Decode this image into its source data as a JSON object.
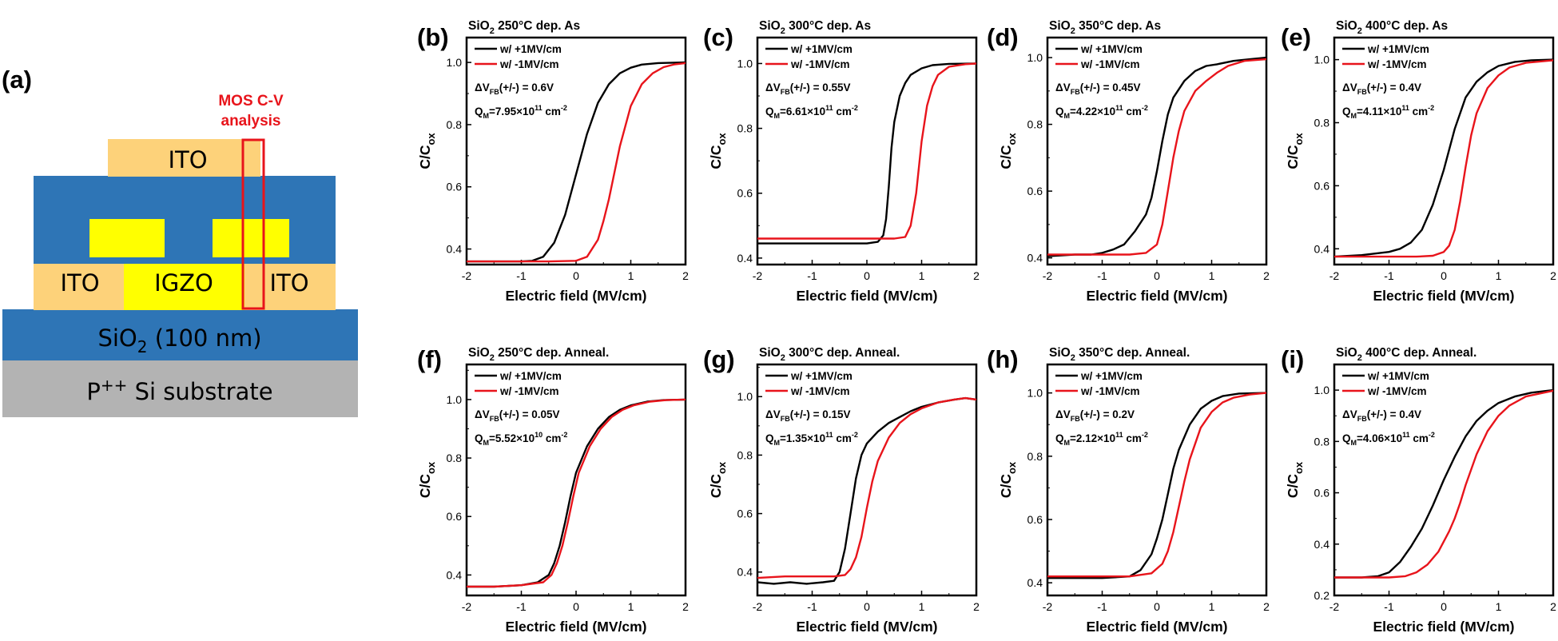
{
  "figure": {
    "panel_a": {
      "letter": "(a)",
      "analysis_label_line1": "MOS C-V",
      "analysis_label_line2": "analysis",
      "layers": {
        "ito_top": "ITO",
        "ito_left": "ITO",
        "igzo": "IGZO",
        "ito_right": "ITO",
        "sio2_main": "SiO",
        "sio2_sub": "2",
        "sio2_rest": " (100 nm)",
        "substrate_main": "P",
        "substrate_sup": "++",
        "substrate_rest": " Si substrate"
      },
      "colors": {
        "ito": "#fdd27a",
        "oxide": "#2e75b6",
        "igzo": "#ffff00",
        "substrate": "#b3b3b3",
        "highlight": "#e8141b"
      }
    },
    "series_colors": {
      "plus": "#000000",
      "minus": "#e8141b"
    }
  },
  "chart_data": [
    {
      "type": "line",
      "letter": "(b)",
      "title_main": "SiO",
      "title_sub": "2",
      "title_rest": " 250°C dep. As",
      "xlabel": "Electric field (MV/cm)",
      "ylabel_main": "C/C",
      "ylabel_sub": "ox",
      "xlim": [
        -2,
        2
      ],
      "ylim": [
        0.35,
        1.08
      ],
      "xticks": [
        -2,
        -1,
        0,
        1,
        2
      ],
      "yticks": [
        0.4,
        0.6,
        0.8,
        1.0
      ],
      "yticklabels": [
        "0.4",
        "0.6",
        "0.8",
        "1.0"
      ],
      "legend": [
        "w/ +1MV/cm",
        "w/ -1MV/cm"
      ],
      "annotation": {
        "dv_pre": "ΔV",
        "dv_sub": "FB",
        "dv_post": "(+/-) = 0.6V",
        "q_pre": "Q",
        "q_sub": "M",
        "q_mid": "=7.95×10",
        "q_exp": "11",
        "q_unit": " cm",
        "q_unit_exp": "-2"
      },
      "series": [
        {
          "name": "w/ +1MV/cm",
          "x": [
            -2.0,
            -1.5,
            -1.0,
            -0.8,
            -0.6,
            -0.4,
            -0.2,
            0.0,
            0.2,
            0.4,
            0.6,
            0.8,
            1.0,
            1.2,
            1.5,
            2.0
          ],
          "y": [
            0.36,
            0.36,
            0.36,
            0.362,
            0.375,
            0.42,
            0.51,
            0.64,
            0.77,
            0.87,
            0.93,
            0.965,
            0.983,
            0.993,
            0.998,
            1.0
          ]
        },
        {
          "name": "w/ -1MV/cm",
          "x": [
            -2.0,
            -1.5,
            -1.0,
            -0.5,
            0.0,
            0.2,
            0.4,
            0.5,
            0.6,
            0.8,
            1.0,
            1.2,
            1.4,
            1.6,
            1.8,
            2.0
          ],
          "y": [
            0.36,
            0.36,
            0.36,
            0.36,
            0.362,
            0.375,
            0.43,
            0.49,
            0.56,
            0.73,
            0.86,
            0.93,
            0.965,
            0.985,
            0.994,
            0.998
          ]
        }
      ]
    },
    {
      "type": "line",
      "letter": "(c)",
      "title_main": "SiO",
      "title_sub": "2",
      "title_rest": " 300°C dep. As",
      "xlabel": "Electric field (MV/cm)",
      "ylabel_main": "C/C",
      "ylabel_sub": "ox",
      "xlim": [
        -2,
        2
      ],
      "ylim": [
        0.38,
        1.08
      ],
      "xticks": [
        -2,
        -1,
        0,
        1,
        2
      ],
      "yticks": [
        0.4,
        0.6,
        0.8,
        1.0
      ],
      "yticklabels": [
        "0.4",
        "0.6",
        "0.8",
        "1.0"
      ],
      "legend": [
        "w/ +1MV/cm",
        "w/ -1MV/cm"
      ],
      "annotation": {
        "dv_pre": "ΔV",
        "dv_sub": "FB",
        "dv_post": "(+/-) = 0.55V",
        "q_pre": "Q",
        "q_sub": "M",
        "q_mid": "=6.61×10",
        "q_exp": "11",
        "q_unit": " cm",
        "q_unit_exp": "-2"
      },
      "series": [
        {
          "name": "w/ +1MV/cm",
          "x": [
            -2.0,
            -1.0,
            0.0,
            0.2,
            0.3,
            0.35,
            0.4,
            0.45,
            0.5,
            0.6,
            0.7,
            0.8,
            1.0,
            1.2,
            1.5,
            2.0
          ],
          "y": [
            0.445,
            0.445,
            0.445,
            0.45,
            0.47,
            0.52,
            0.62,
            0.74,
            0.82,
            0.9,
            0.94,
            0.965,
            0.985,
            0.995,
            0.999,
            1.0
          ]
        },
        {
          "name": "w/ -1MV/cm",
          "x": [
            -2.0,
            -1.0,
            0.0,
            0.5,
            0.7,
            0.8,
            0.9,
            0.95,
            1.0,
            1.1,
            1.2,
            1.3,
            1.5,
            1.8,
            2.0
          ],
          "y": [
            0.46,
            0.46,
            0.46,
            0.46,
            0.465,
            0.5,
            0.6,
            0.68,
            0.76,
            0.87,
            0.93,
            0.965,
            0.99,
            0.998,
            1.0
          ]
        }
      ]
    },
    {
      "type": "line",
      "letter": "(d)",
      "title_main": "SiO",
      "title_sub": "2",
      "title_rest": " 350°C dep. As",
      "xlabel": "Electric field (MV/cm)",
      "ylabel_main": "C/C",
      "ylabel_sub": "ox",
      "xlim": [
        -2,
        2
      ],
      "ylim": [
        0.38,
        1.06
      ],
      "xticks": [
        -2,
        -1,
        0,
        1,
        2
      ],
      "yticks": [
        0.4,
        0.6,
        0.8,
        1.0
      ],
      "yticklabels": [
        "0.4",
        "0.6",
        "0.8",
        "1.0"
      ],
      "legend": [
        "w/ +1MV/cm",
        "w/ -1MV/cm"
      ],
      "annotation": {
        "dv_pre": "ΔV",
        "dv_sub": "FB",
        "dv_post": "(+/-) = 0.45V",
        "q_pre": "Q",
        "q_sub": "M",
        "q_mid": "=4.22×10",
        "q_exp": "11",
        "q_unit": " cm",
        "q_unit_exp": "-2"
      },
      "series": [
        {
          "name": "w/ +1MV/cm",
          "x": [
            -2.0,
            -1.5,
            -1.2,
            -1.0,
            -0.8,
            -0.6,
            -0.4,
            -0.2,
            -0.1,
            0.0,
            0.1,
            0.2,
            0.3,
            0.5,
            0.7,
            0.9,
            1.1,
            1.4,
            1.7,
            2.0
          ],
          "y": [
            0.405,
            0.41,
            0.41,
            0.415,
            0.425,
            0.44,
            0.48,
            0.53,
            0.58,
            0.66,
            0.75,
            0.83,
            0.88,
            0.93,
            0.96,
            0.975,
            0.98,
            0.99,
            0.995,
            1.0
          ]
        },
        {
          "name": "w/ -1MV/cm",
          "x": [
            -2.0,
            -1.5,
            -1.0,
            -0.5,
            -0.2,
            0.0,
            0.1,
            0.2,
            0.3,
            0.4,
            0.5,
            0.7,
            0.9,
            1.1,
            1.3,
            1.6,
            2.0
          ],
          "y": [
            0.41,
            0.41,
            0.41,
            0.41,
            0.415,
            0.44,
            0.5,
            0.6,
            0.7,
            0.78,
            0.84,
            0.9,
            0.93,
            0.955,
            0.975,
            0.99,
            0.995
          ]
        }
      ]
    },
    {
      "type": "line",
      "letter": "(e)",
      "title_main": "SiO",
      "title_sub": "2",
      "title_rest": " 400°C dep. As",
      "xlabel": "Electric field (MV/cm)",
      "ylabel_main": "C/C",
      "ylabel_sub": "ox",
      "xlim": [
        -2,
        2
      ],
      "ylim": [
        0.35,
        1.07
      ],
      "xticks": [
        -2,
        -1,
        0,
        1,
        2
      ],
      "yticks": [
        0.4,
        0.6,
        0.8,
        1.0
      ],
      "yticklabels": [
        "0.4",
        "0.6",
        "0.8",
        "1.0"
      ],
      "legend": [
        "w/ +1MV/cm",
        "w/ -1MV/cm"
      ],
      "annotation": {
        "dv_pre": "ΔV",
        "dv_sub": "FB",
        "dv_post": "(+/-) = 0.4V",
        "q_pre": "Q",
        "q_sub": "M",
        "q_mid": "=4.11×10",
        "q_exp": "11",
        "q_unit": " cm",
        "q_unit_exp": "-2"
      },
      "series": [
        {
          "name": "w/ +1MV/cm",
          "x": [
            -2.0,
            -1.5,
            -1.0,
            -0.8,
            -0.6,
            -0.4,
            -0.2,
            0.0,
            0.2,
            0.4,
            0.6,
            0.8,
            1.0,
            1.3,
            1.6,
            2.0
          ],
          "y": [
            0.375,
            0.38,
            0.39,
            0.4,
            0.42,
            0.46,
            0.54,
            0.65,
            0.78,
            0.88,
            0.93,
            0.96,
            0.98,
            0.993,
            0.998,
            1.0
          ]
        },
        {
          "name": "w/ -1MV/cm",
          "x": [
            -2.0,
            -1.0,
            -0.5,
            -0.2,
            0.0,
            0.1,
            0.2,
            0.3,
            0.4,
            0.5,
            0.6,
            0.8,
            1.0,
            1.2,
            1.5,
            2.0
          ],
          "y": [
            0.375,
            0.375,
            0.375,
            0.378,
            0.39,
            0.41,
            0.46,
            0.55,
            0.66,
            0.76,
            0.83,
            0.91,
            0.95,
            0.975,
            0.99,
            0.998
          ]
        }
      ]
    },
    {
      "type": "line",
      "letter": "(f)",
      "title_main": "SiO",
      "title_sub": "2",
      "title_rest": " 250°C dep. Anneal.",
      "xlabel": "Electric field (MV/cm)",
      "ylabel_main": "C/C",
      "ylabel_sub": "ox",
      "xlim": [
        -2,
        2
      ],
      "ylim": [
        0.33,
        1.12
      ],
      "xticks": [
        -2,
        -1,
        0,
        1,
        2
      ],
      "yticks": [
        0.4,
        0.6,
        0.8,
        1.0
      ],
      "yticklabels": [
        "0.4",
        "0.6",
        "0.8",
        "1.0"
      ],
      "legend": [
        "w/ +1MV/cm",
        "w/ -1MV/cm"
      ],
      "annotation": {
        "dv_pre": "ΔV",
        "dv_sub": "FB",
        "dv_post": "(+/-) = 0.05V",
        "q_pre": "Q",
        "q_sub": "M",
        "q_mid": "=5.52×10",
        "q_exp": "10",
        "q_unit": " cm",
        "q_unit_exp": "-2"
      },
      "series": [
        {
          "name": "w/ +1MV/cm",
          "x": [
            -2.0,
            -1.5,
            -1.0,
            -0.7,
            -0.5,
            -0.4,
            -0.3,
            -0.2,
            -0.1,
            0.0,
            0.2,
            0.4,
            0.6,
            0.8,
            1.0,
            1.3,
            1.6,
            2.0
          ],
          "y": [
            0.36,
            0.36,
            0.365,
            0.375,
            0.4,
            0.44,
            0.5,
            0.58,
            0.67,
            0.75,
            0.84,
            0.9,
            0.94,
            0.965,
            0.98,
            0.993,
            0.998,
            1.0
          ]
        },
        {
          "name": "w/ -1MV/cm",
          "x": [
            -2.0,
            -1.5,
            -1.0,
            -0.6,
            -0.45,
            -0.35,
            -0.25,
            -0.15,
            -0.05,
            0.05,
            0.25,
            0.45,
            0.65,
            0.85,
            1.05,
            1.35,
            1.65,
            2.0
          ],
          "y": [
            0.36,
            0.36,
            0.365,
            0.375,
            0.4,
            0.44,
            0.5,
            0.58,
            0.67,
            0.75,
            0.84,
            0.9,
            0.94,
            0.965,
            0.98,
            0.993,
            0.998,
            1.0
          ]
        }
      ]
    },
    {
      "type": "line",
      "letter": "(g)",
      "title_main": "SiO",
      "title_sub": "2",
      "title_rest": " 300°C dep. Anneal.",
      "xlabel": "Electric field (MV/cm)",
      "ylabel_main": "C/C",
      "ylabel_sub": "ox",
      "xlim": [
        -2,
        2
      ],
      "ylim": [
        0.32,
        1.11
      ],
      "xticks": [
        -2,
        -1,
        0,
        1,
        2
      ],
      "yticks": [
        0.4,
        0.6,
        0.8,
        1.0
      ],
      "yticklabels": [
        "0.4",
        "0.6",
        "0.8",
        "1.0"
      ],
      "legend": [
        "w/ +1MV/cm",
        "w/ -1MV/cm"
      ],
      "annotation": {
        "dv_pre": "ΔV",
        "dv_sub": "FB",
        "dv_post": "(+/-) = 0.15V",
        "q_pre": "Q",
        "q_sub": "M",
        "q_mid": "=1.35×10",
        "q_exp": "11",
        "q_unit": " cm",
        "q_unit_exp": "-2"
      },
      "series": [
        {
          "name": "w/ +1MV/cm",
          "x": [
            -2.0,
            -1.7,
            -1.4,
            -1.1,
            -0.8,
            -0.6,
            -0.5,
            -0.4,
            -0.3,
            -0.2,
            -0.1,
            0.0,
            0.2,
            0.4,
            0.6,
            0.8,
            1.0,
            1.3,
            1.6,
            1.8,
            2.0
          ],
          "y": [
            0.365,
            0.36,
            0.365,
            0.36,
            0.365,
            0.37,
            0.4,
            0.48,
            0.6,
            0.72,
            0.8,
            0.84,
            0.88,
            0.91,
            0.93,
            0.95,
            0.965,
            0.98,
            0.99,
            0.995,
            0.99
          ]
        },
        {
          "name": "w/ -1MV/cm",
          "x": [
            -2.0,
            -1.5,
            -1.0,
            -0.6,
            -0.4,
            -0.3,
            -0.2,
            -0.1,
            0.0,
            0.1,
            0.2,
            0.4,
            0.6,
            0.8,
            1.0,
            1.3,
            1.6,
            1.8,
            2.0
          ],
          "y": [
            0.38,
            0.385,
            0.385,
            0.385,
            0.39,
            0.41,
            0.45,
            0.52,
            0.62,
            0.71,
            0.78,
            0.86,
            0.91,
            0.94,
            0.96,
            0.98,
            0.99,
            0.995,
            0.99
          ]
        }
      ]
    },
    {
      "type": "line",
      "letter": "(h)",
      "title_main": "SiO",
      "title_sub": "2",
      "title_rest": " 350°C dep. Anneal.",
      "xlabel": "Electric field (MV/cm)",
      "ylabel_main": "C/C",
      "ylabel_sub": "ox",
      "xlim": [
        -2,
        2
      ],
      "ylim": [
        0.36,
        1.09
      ],
      "xticks": [
        -2,
        -1,
        0,
        1,
        2
      ],
      "yticks": [
        0.4,
        0.6,
        0.8,
        1.0
      ],
      "yticklabels": [
        "0.4",
        "0.6",
        "0.8",
        "1.0"
      ],
      "legend": [
        "w/ +1MV/cm",
        "w/ -1MV/cm"
      ],
      "annotation": {
        "dv_pre": "ΔV",
        "dv_sub": "FB",
        "dv_post": "(+/-) = 0.2V",
        "q_pre": "Q",
        "q_sub": "M",
        "q_mid": "=2.12×10",
        "q_exp": "11",
        "q_unit": " cm",
        "q_unit_exp": "-2"
      },
      "series": [
        {
          "name": "w/ +1MV/cm",
          "x": [
            -2.0,
            -1.0,
            -0.5,
            -0.3,
            -0.1,
            0.0,
            0.1,
            0.2,
            0.3,
            0.4,
            0.6,
            0.8,
            1.0,
            1.2,
            1.5,
            2.0
          ],
          "y": [
            0.415,
            0.415,
            0.42,
            0.44,
            0.49,
            0.54,
            0.6,
            0.68,
            0.76,
            0.82,
            0.9,
            0.95,
            0.975,
            0.99,
            0.998,
            1.0
          ]
        },
        {
          "name": "w/ -1MV/cm",
          "x": [
            -2.0,
            -1.0,
            -0.5,
            -0.1,
            0.1,
            0.2,
            0.3,
            0.4,
            0.5,
            0.6,
            0.8,
            1.0,
            1.2,
            1.4,
            1.7,
            2.0
          ],
          "y": [
            0.42,
            0.42,
            0.42,
            0.43,
            0.46,
            0.5,
            0.56,
            0.64,
            0.72,
            0.79,
            0.89,
            0.94,
            0.97,
            0.985,
            0.995,
            1.0
          ]
        }
      ]
    },
    {
      "type": "line",
      "letter": "(i)",
      "title_main": "SiO",
      "title_sub": "2",
      "title_rest": " 400°C dep. Anneal.",
      "xlabel": "Electric field (MV/cm)",
      "ylabel_main": "C/C",
      "ylabel_sub": "ox",
      "xlim": [
        -2,
        2
      ],
      "ylim": [
        0.2,
        1.1
      ],
      "xticks": [
        -2,
        -1,
        0,
        1,
        2
      ],
      "yticks": [
        0.2,
        0.4,
        0.6,
        0.8,
        1.0
      ],
      "yticklabels": [
        "0.2",
        "0.4",
        "0.6",
        "0.8",
        "1.0"
      ],
      "legend": [
        "w/ +1MV/cm",
        "w/ -1MV/cm"
      ],
      "annotation": {
        "dv_pre": "ΔV",
        "dv_sub": "FB",
        "dv_post": "(+/-) = 0.4V",
        "q_pre": "Q",
        "q_sub": "M",
        "q_mid": "=4.06×10",
        "q_exp": "11",
        "q_unit": " cm",
        "q_unit_exp": "-2"
      },
      "series": [
        {
          "name": "w/ +1MV/cm",
          "x": [
            -2.0,
            -1.5,
            -1.2,
            -1.0,
            -0.8,
            -0.6,
            -0.4,
            -0.2,
            0.0,
            0.2,
            0.4,
            0.6,
            0.8,
            1.0,
            1.3,
            1.6,
            2.0
          ],
          "y": [
            0.27,
            0.27,
            0.275,
            0.29,
            0.33,
            0.39,
            0.46,
            0.55,
            0.65,
            0.74,
            0.82,
            0.88,
            0.92,
            0.95,
            0.975,
            0.99,
            1.0
          ]
        },
        {
          "name": "w/ -1MV/cm",
          "x": [
            -2.0,
            -1.5,
            -1.0,
            -0.7,
            -0.5,
            -0.3,
            -0.1,
            0.1,
            0.2,
            0.3,
            0.4,
            0.6,
            0.8,
            1.0,
            1.2,
            1.5,
            2.0
          ],
          "y": [
            0.27,
            0.27,
            0.27,
            0.275,
            0.29,
            0.32,
            0.37,
            0.45,
            0.5,
            0.56,
            0.63,
            0.75,
            0.84,
            0.9,
            0.94,
            0.975,
            0.998
          ]
        }
      ]
    }
  ]
}
